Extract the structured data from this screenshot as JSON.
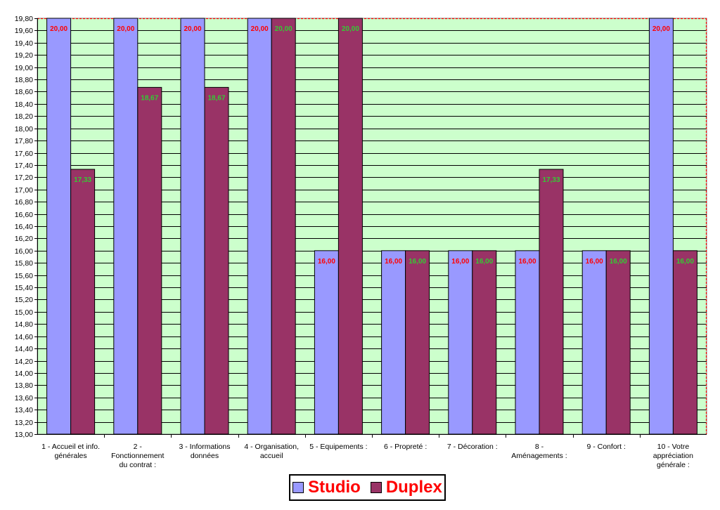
{
  "chart_data": {
    "type": "bar",
    "title": "",
    "xlabel": "",
    "ylabel": "",
    "ylim": [
      13.0,
      19.8
    ],
    "ytick_step": 0.2,
    "grid": true,
    "legend_position": "bottom-center",
    "categories": [
      [
        "1 - Accueil et info.",
        "générales"
      ],
      [
        "2 -",
        "Fonctionnement",
        "du contrat :"
      ],
      [
        "3 - Informations",
        "données"
      ],
      [
        "4 - Organisation,",
        "accueil"
      ],
      [
        "5 - Equipements :"
      ],
      [
        "6 - Propreté :"
      ],
      [
        "7 - Décoration :"
      ],
      [
        "8 -",
        "Aménagements :"
      ],
      [
        "9 - Confort :"
      ],
      [
        "10 - Votre",
        "appréciation",
        "générale  :"
      ]
    ],
    "series": [
      {
        "name": "Studio",
        "color": "#9999ff",
        "label_color": "#ff0000",
        "values": [
          20.0,
          20.0,
          20.0,
          20.0,
          16.0,
          16.0,
          16.0,
          16.0,
          16.0,
          20.0
        ],
        "labels": [
          "20,00",
          "20,00",
          "20,00",
          "20,00",
          "16,00",
          "16,00",
          "16,00",
          "16,00",
          "16,00",
          "20,00"
        ]
      },
      {
        "name": "Duplex",
        "color": "#993366",
        "label_color": "#33cc33",
        "values": [
          17.33,
          18.67,
          18.67,
          20.0,
          20.0,
          16.0,
          16.0,
          17.33,
          16.0,
          16.0
        ],
        "labels": [
          "17,33",
          "18,67",
          "18,67",
          "20,00",
          "20,00",
          "16,00",
          "16,00",
          "17,33",
          "16,00",
          "16,00"
        ]
      }
    ]
  },
  "colors": {
    "plot_background": "#ccffcc",
    "gridline": "#000000",
    "reference_line": "#ff0000"
  }
}
